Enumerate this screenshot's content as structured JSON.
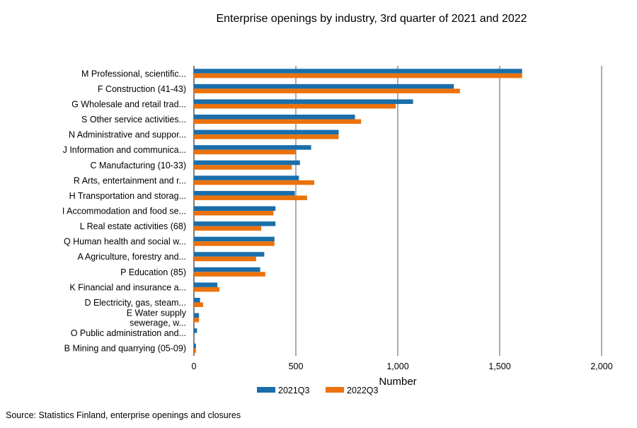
{
  "source": "Source: Statistics Finland, enterprise openings and closures",
  "chart_data": {
    "type": "bar",
    "orientation": "horizontal",
    "title": "Enterprise openings by industry, 3rd quarter of 2021 and 2022",
    "xlabel": "Number",
    "ylabel": "",
    "xlim": [
      0,
      2000
    ],
    "xticks": [
      0,
      500,
      1000,
      1500,
      2000
    ],
    "xtick_labels": [
      "0",
      "500",
      "1,000",
      "1,500",
      "2,000"
    ],
    "grid": "vertical",
    "legend_position": "bottom",
    "categories": [
      "M Professional, scientific...",
      "F Construction (41-43)",
      "G Wholesale and retail trad...",
      "S Other service activities...",
      "N Administrative and suppor...",
      "J Information and communica...",
      "C Manufacturing (10-33)",
      "R Arts, entertainment and r...",
      "H Transportation and storag...",
      "I Accommodation and food se...",
      "L Real estate activities (68)",
      "Q Human health and social w...",
      "A Agriculture, forestry and...",
      "P Education (85)",
      "K Financial and insurance a...",
      "D Electricity,  gas, steam...",
      "E Water supply\nsewerage, w...",
      "O Public administration and...",
      "B Mining and quarrying (05-09)"
    ],
    "series": [
      {
        "name": "2021Q3",
        "color": "#1a6eaa",
        "values": [
          1610,
          1275,
          1075,
          790,
          710,
          575,
          520,
          515,
          495,
          400,
          400,
          395,
          345,
          325,
          115,
          30,
          25,
          15,
          10
        ]
      },
      {
        "name": "2022Q3",
        "color": "#eb720c",
        "values": [
          1610,
          1305,
          990,
          820,
          710,
          500,
          480,
          590,
          555,
          390,
          330,
          395,
          305,
          350,
          125,
          45,
          25,
          0,
          10
        ]
      }
    ]
  }
}
